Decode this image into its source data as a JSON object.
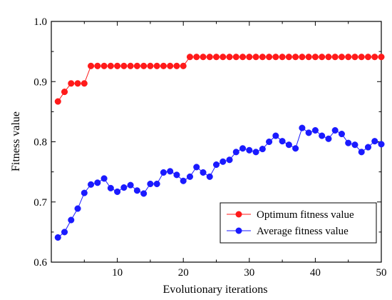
{
  "chart_data": {
    "type": "line",
    "xlabel": "Evolutionary iterations",
    "ylabel": "Fitness value",
    "xlim": [
      0,
      50
    ],
    "ylim": [
      0.6,
      1.0
    ],
    "xticks": [
      10,
      20,
      30,
      40,
      50
    ],
    "xtick_labels": [
      "10",
      "20",
      "30",
      "40",
      "50"
    ],
    "yticks": [
      0.6,
      0.7,
      0.8,
      0.9,
      1.0
    ],
    "ytick_labels": [
      "0.6",
      "0.7",
      "0.8",
      "0.9",
      "1.0"
    ],
    "grid": false,
    "legend_position": "bottom-right",
    "x": [
      1,
      2,
      3,
      4,
      5,
      6,
      7,
      8,
      9,
      10,
      11,
      12,
      13,
      14,
      15,
      16,
      17,
      18,
      19,
      20,
      21,
      22,
      23,
      24,
      25,
      26,
      27,
      28,
      29,
      30,
      31,
      32,
      33,
      34,
      35,
      36,
      37,
      38,
      39,
      40,
      41,
      42,
      43,
      44,
      45,
      46,
      47,
      48,
      49,
      50
    ],
    "series": [
      {
        "name": "Optimum fitness value",
        "color": "#ff1a1a",
        "values": [
          0.867,
          0.883,
          0.897,
          0.897,
          0.897,
          0.926,
          0.926,
          0.926,
          0.926,
          0.926,
          0.926,
          0.926,
          0.926,
          0.926,
          0.926,
          0.926,
          0.926,
          0.926,
          0.926,
          0.926,
          0.941,
          0.941,
          0.941,
          0.941,
          0.941,
          0.941,
          0.941,
          0.941,
          0.941,
          0.941,
          0.941,
          0.941,
          0.941,
          0.941,
          0.941,
          0.941,
          0.941,
          0.941,
          0.941,
          0.941,
          0.941,
          0.941,
          0.941,
          0.941,
          0.941,
          0.941,
          0.941,
          0.941,
          0.941,
          0.941
        ]
      },
      {
        "name": "Average fitness value",
        "color": "#1a1aff",
        "values": [
          0.641,
          0.65,
          0.67,
          0.689,
          0.715,
          0.729,
          0.732,
          0.739,
          0.723,
          0.717,
          0.724,
          0.728,
          0.719,
          0.714,
          0.73,
          0.73,
          0.749,
          0.751,
          0.745,
          0.735,
          0.742,
          0.758,
          0.749,
          0.742,
          0.762,
          0.767,
          0.77,
          0.783,
          0.789,
          0.786,
          0.783,
          0.788,
          0.8,
          0.81,
          0.801,
          0.795,
          0.789,
          0.823,
          0.815,
          0.819,
          0.81,
          0.805,
          0.819,
          0.813,
          0.798,
          0.795,
          0.783,
          0.791,
          0.801,
          0.796
        ]
      }
    ]
  }
}
